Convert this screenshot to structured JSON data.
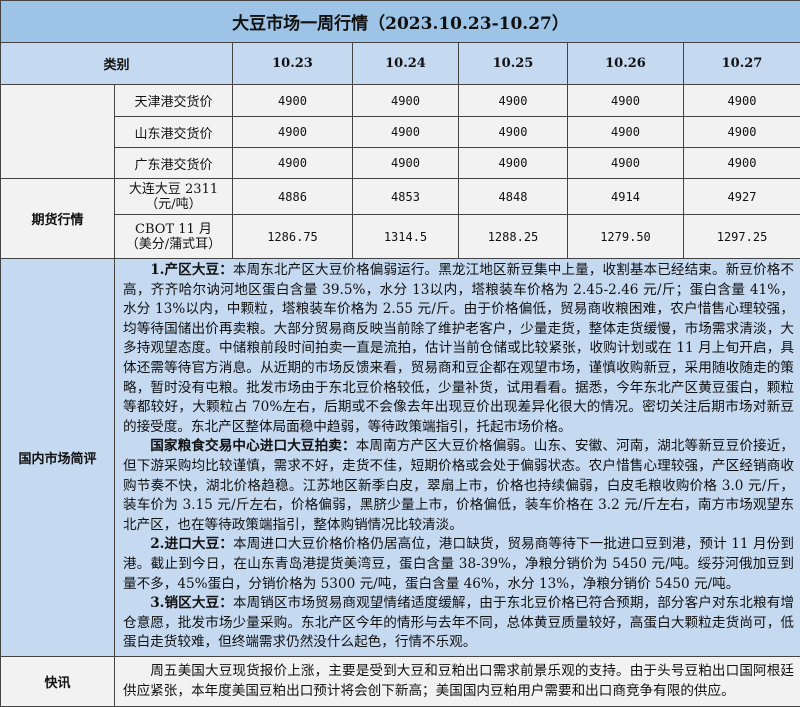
{
  "title": "大豆市场一周行情（2023.10.23-10.27）",
  "header": {
    "category": "类别",
    "dates": [
      "10.23",
      "10.24",
      "10.25",
      "10.26",
      "10.27"
    ]
  },
  "spot_rows": [
    {
      "label": "天津港交货价",
      "values": [
        "4900",
        "4900",
        "4900",
        "4900",
        "4900"
      ]
    },
    {
      "label": "山东港交货价",
      "values": [
        "4900",
        "4900",
        "4900",
        "4900",
        "4900"
      ]
    },
    {
      "label": "广东港交货价",
      "values": [
        "4900",
        "4900",
        "4900",
        "4900",
        "4900"
      ]
    }
  ],
  "futures": {
    "group": "期货行情",
    "rows": [
      {
        "label": "大连大豆 2311（元/吨）",
        "values": [
          "4886",
          "4853",
          "4848",
          "4914",
          "4927"
        ]
      },
      {
        "label": "CBOT 11 月（美分/蒲式耳）",
        "values": [
          "1286.75",
          "1314.5",
          "1288.25",
          "1279.50",
          "1297.25"
        ]
      }
    ]
  },
  "domestic": {
    "label": "国内市场简评",
    "paragraphs": [
      {
        "head": "1.产区大豆：",
        "body": "本周东北产区大豆价格偏弱运行。黑龙江地区新豆集中上量，收割基本已经结束。新豆价格不高，齐齐哈尔讷河地区蛋白含量 39.5%，水分 13以内，塔粮装车价格为 2.45-2.46 元/斤；蛋白含量 41%，水分 13%以内，中颗粒，塔粮装车价格为 2.55 元/斤。由于价格偏低，贸易商收粮困难，农户惜售心理较强，均等待国储出价再卖粮。大部分贸易商反映当前除了维护老客户，少量走货，整体走货缓慢，市场需求清淡，大多持观望态度。中储粮前段时间拍卖一直是流拍，估计当前仓储或比较紧张，收购计划或在 11 月上旬开启，具体还需等待官方消息。从近期的市场反馈来看，贸易商和豆企都在观望市场，谨慎收购新豆，采用随收随走的策略，暂时没有屯粮。批发市场由于东北豆价格较低，少量补货，试用看看。据悉，今年东北产区黄豆蛋白，颗粒等都较好，大颗粒占 70%左右，后期或不会像去年出现豆价出现差异化很大的情况。密切关注后期市场对新豆的接受度。东北产区整体局面稳中趋弱，等待政策端指引，托起市场价格。"
      },
      {
        "head": "国家粮食交易中心进口大豆拍卖：",
        "body": "本周南方产区大豆价格偏弱。山东、安徽、河南，湖北等新豆豆价接近，但下游采购均比较谨慎，需求不好，走货不佳，短期价格或会处于偏弱状态。农户惜售心理较强，产区经销商收购节奏不快，湖北价格趋稳。江苏地区新季白皮，翠扇上市，价格也持续偏弱，白皮毛粮收购价格 3.0 元/斤，装车价为 3.15 元/斤左右，价格偏弱，黑脐少量上市，价格偏低，装车价格在 3.2 元/斤左右，南方市场观望东北产区，也在等待政策端指引，整体购销情况比较清淡。"
      },
      {
        "head": "2.进口大豆：",
        "body": "本周进口大豆价格价格仍居高位，港口缺货，贸易商等待下一批进口豆到港，预计 11 月份到港。截止到今日，在山东青岛港提货美湾豆，蛋白含量 38-39%，净粮分销价为 5450 元/吨。绥芬河俄加豆到量不多，45%蛋白，分销价格为 5300 元/吨，蛋白含量 46%，水分 13%，净粮分销价 5450 元/吨。"
      },
      {
        "head": "3.销区大豆：",
        "body": "本周销区市场贸易商观望情绪适度缓解，由于东北豆价格已符合预期，部分客户对东北粮有增仓意愿，批发市场少量采购。东北产区今年的情形与去年不同，总体黄豆质量较好，高蛋白大颗粒走货尚可，低蛋白走货较难，但终端需求仍然没什么起色，行情不乐观。"
      }
    ]
  },
  "news": {
    "label": "快讯",
    "body": "周五美国大豆现货报价上涨，主要是受到大豆和豆粕出口需求前景乐观的支持。由于头号豆粕出口国阿根廷供应紧张，本年度美国豆粕出口预计将会创下新高；美国国内豆粕用户需要和出口商竞争有限的供应。"
  }
}
